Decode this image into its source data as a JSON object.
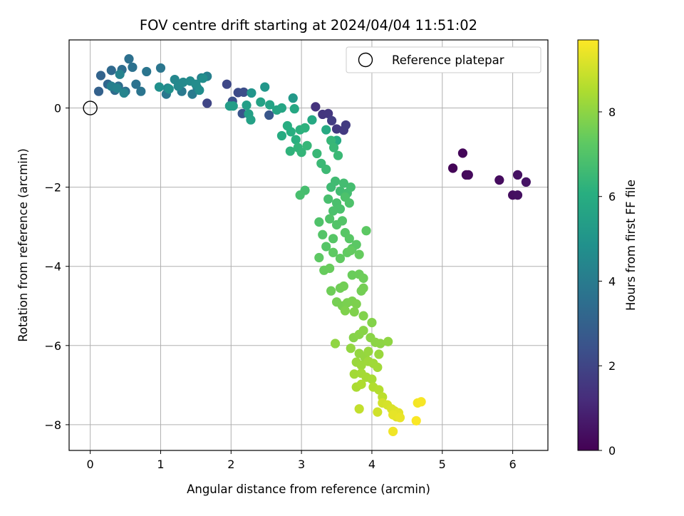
{
  "chart_data": {
    "type": "scatter",
    "title": "FOV centre drift starting at 2024/04/04 11:51:02",
    "xlabel": "Angular distance from reference (arcmin)",
    "ylabel": "Rotation from reference (arcmin)",
    "xlim": [
      -0.3,
      6.5
    ],
    "ylim": [
      -8.65,
      1.72
    ],
    "x_ticks": [
      0,
      1,
      2,
      3,
      4,
      5,
      6
    ],
    "y_ticks": [
      -8,
      -6,
      -4,
      -2,
      0
    ],
    "x_tick_labels": [
      "0",
      "1",
      "2",
      "3",
      "4",
      "5",
      "6"
    ],
    "y_tick_labels": [
      "−8",
      "−6",
      "−4",
      "−2",
      "0"
    ],
    "grid": true,
    "legend": {
      "placement": "top-right",
      "entries": [
        "Reference platepar"
      ]
    },
    "colorbar": {
      "label": "Hours from first FF file",
      "range": [
        0,
        9.7
      ],
      "ticks": [
        0,
        2,
        4,
        6,
        8
      ],
      "tick_labels": [
        "0",
        "2",
        "4",
        "6",
        "8"
      ],
      "colormap": "viridis"
    },
    "reference_point": {
      "x": 0,
      "y": 0
    },
    "points": [
      {
        "x": 5.15,
        "y": -1.52,
        "t": 0.1
      },
      {
        "x": 5.29,
        "y": -1.14,
        "t": 0.15
      },
      {
        "x": 5.34,
        "y": -1.69,
        "t": 0.2
      },
      {
        "x": 5.37,
        "y": -1.69,
        "t": 0.25
      },
      {
        "x": 5.81,
        "y": -1.82,
        "t": 0.3
      },
      {
        "x": 6.0,
        "y": -2.2,
        "t": 0.35
      },
      {
        "x": 6.07,
        "y": -2.2,
        "t": 0.4
      },
      {
        "x": 6.07,
        "y": -1.69,
        "t": 0.45
      },
      {
        "x": 6.19,
        "y": -1.87,
        "t": 0.5
      },
      {
        "x": 3.2,
        "y": 0.03,
        "t": 1.4
      },
      {
        "x": 3.3,
        "y": -0.16,
        "t": 1.5
      },
      {
        "x": 3.38,
        "y": -0.14,
        "t": 1.55
      },
      {
        "x": 3.5,
        "y": -0.53,
        "t": 1.6
      },
      {
        "x": 3.6,
        "y": -0.56,
        "t": 1.65
      },
      {
        "x": 3.63,
        "y": -0.43,
        "t": 1.7
      },
      {
        "x": 3.43,
        "y": -0.32,
        "t": 1.75
      },
      {
        "x": 1.66,
        "y": 0.12,
        "t": 2.0
      },
      {
        "x": 1.94,
        "y": 0.6,
        "t": 2.1
      },
      {
        "x": 2.1,
        "y": 0.39,
        "t": 2.2
      },
      {
        "x": 2.18,
        "y": 0.4,
        "t": 2.3
      },
      {
        "x": 2.02,
        "y": 0.17,
        "t": 2.4
      },
      {
        "x": 2.16,
        "y": -0.14,
        "t": 2.5
      },
      {
        "x": 2.54,
        "y": -0.18,
        "t": 2.6
      },
      {
        "x": 0.12,
        "y": 0.42,
        "t": 3.0
      },
      {
        "x": 0.15,
        "y": 0.82,
        "t": 3.1
      },
      {
        "x": 0.25,
        "y": 0.6,
        "t": 3.2
      },
      {
        "x": 0.3,
        "y": 0.95,
        "t": 3.3
      },
      {
        "x": 0.35,
        "y": 0.45,
        "t": 3.35
      },
      {
        "x": 0.4,
        "y": 0.55,
        "t": 3.4
      },
      {
        "x": 0.45,
        "y": 0.97,
        "t": 3.45
      },
      {
        "x": 0.5,
        "y": 0.42,
        "t": 3.5
      },
      {
        "x": 0.55,
        "y": 1.24,
        "t": 3.55
      },
      {
        "x": 0.6,
        "y": 1.03,
        "t": 3.6
      },
      {
        "x": 0.65,
        "y": 0.6,
        "t": 3.65
      },
      {
        "x": 0.72,
        "y": 0.42,
        "t": 3.7
      },
      {
        "x": 0.8,
        "y": 0.92,
        "t": 3.75
      },
      {
        "x": 1.0,
        "y": 1.01,
        "t": 3.8
      },
      {
        "x": 1.08,
        "y": 0.35,
        "t": 3.85
      },
      {
        "x": 1.3,
        "y": 0.42,
        "t": 3.9
      },
      {
        "x": 1.45,
        "y": 0.35,
        "t": 3.95
      },
      {
        "x": 1.52,
        "y": 0.51,
        "t": 4.0
      },
      {
        "x": 1.58,
        "y": 0.76,
        "t": 4.1
      },
      {
        "x": 1.66,
        "y": 0.8,
        "t": 4.2
      },
      {
        "x": 0.3,
        "y": 0.55,
        "t": 4.15
      },
      {
        "x": 0.38,
        "y": 0.5,
        "t": 4.25
      },
      {
        "x": 0.42,
        "y": 0.85,
        "t": 4.3
      },
      {
        "x": 0.48,
        "y": 0.38,
        "t": 4.35
      },
      {
        "x": 1.1,
        "y": 0.5,
        "t": 4.4
      },
      {
        "x": 1.2,
        "y": 0.72,
        "t": 4.45
      },
      {
        "x": 1.25,
        "y": 0.55,
        "t": 4.5
      },
      {
        "x": 1.32,
        "y": 0.65,
        "t": 4.55
      },
      {
        "x": 1.42,
        "y": 0.68,
        "t": 4.6
      },
      {
        "x": 1.5,
        "y": 0.6,
        "t": 4.65
      },
      {
        "x": 1.55,
        "y": 0.45,
        "t": 4.7
      },
      {
        "x": 1.6,
        "y": 0.75,
        "t": 4.75
      },
      {
        "x": 0.98,
        "y": 0.53,
        "t": 4.8
      },
      {
        "x": 1.12,
        "y": 0.48,
        "t": 4.85
      },
      {
        "x": 2.29,
        "y": 0.38,
        "t": 5.0
      },
      {
        "x": 2.48,
        "y": 0.53,
        "t": 5.1
      },
      {
        "x": 2.88,
        "y": 0.25,
        "t": 5.2
      },
      {
        "x": 1.98,
        "y": 0.05,
        "t": 5.3
      },
      {
        "x": 2.03,
        "y": 0.05,
        "t": 5.35
      },
      {
        "x": 2.22,
        "y": 0.07,
        "t": 5.4
      },
      {
        "x": 2.25,
        "y": -0.15,
        "t": 5.45
      },
      {
        "x": 2.28,
        "y": -0.3,
        "t": 5.5
      },
      {
        "x": 2.42,
        "y": 0.15,
        "t": 5.55
      },
      {
        "x": 2.55,
        "y": 0.08,
        "t": 5.6
      },
      {
        "x": 2.65,
        "y": -0.05,
        "t": 5.65
      },
      {
        "x": 2.72,
        "y": 0.0,
        "t": 5.7
      },
      {
        "x": 2.9,
        "y": -0.02,
        "t": 5.75
      },
      {
        "x": 3.15,
        "y": -0.3,
        "t": 5.8
      },
      {
        "x": 3.35,
        "y": -0.55,
        "t": 5.85
      },
      {
        "x": 3.5,
        "y": -0.82,
        "t": 5.9
      },
      {
        "x": 2.72,
        "y": -0.7,
        "t": 5.95
      },
      {
        "x": 2.8,
        "y": -0.45,
        "t": 6.0
      },
      {
        "x": 2.85,
        "y": -0.6,
        "t": 6.05
      },
      {
        "x": 2.92,
        "y": -0.8,
        "t": 6.1
      },
      {
        "x": 2.98,
        "y": -0.55,
        "t": 6.15
      },
      {
        "x": 3.05,
        "y": -0.5,
        "t": 6.2
      },
      {
        "x": 2.84,
        "y": -1.09,
        "t": 6.25
      },
      {
        "x": 2.95,
        "y": -1.0,
        "t": 6.3
      },
      {
        "x": 3.0,
        "y": -1.12,
        "t": 6.35
      },
      {
        "x": 3.08,
        "y": -0.95,
        "t": 6.4
      },
      {
        "x": 3.22,
        "y": -1.15,
        "t": 6.45
      },
      {
        "x": 3.28,
        "y": -1.4,
        "t": 6.5
      },
      {
        "x": 3.42,
        "y": -0.82,
        "t": 6.4
      },
      {
        "x": 3.46,
        "y": -1.0,
        "t": 6.45
      },
      {
        "x": 3.52,
        "y": -1.2,
        "t": 6.5
      },
      {
        "x": 3.35,
        "y": -1.55,
        "t": 6.55
      },
      {
        "x": 3.42,
        "y": -2.0,
        "t": 6.6
      },
      {
        "x": 3.48,
        "y": -1.85,
        "t": 6.62
      },
      {
        "x": 3.55,
        "y": -2.1,
        "t": 6.65
      },
      {
        "x": 3.6,
        "y": -1.9,
        "t": 6.68
      },
      {
        "x": 3.65,
        "y": -2.15,
        "t": 6.7
      },
      {
        "x": 3.7,
        "y": -2.0,
        "t": 6.72
      },
      {
        "x": 3.05,
        "y": -2.08,
        "t": 6.75
      },
      {
        "x": 2.98,
        "y": -2.2,
        "t": 6.78
      },
      {
        "x": 3.38,
        "y": -2.3,
        "t": 6.8
      },
      {
        "x": 3.5,
        "y": -2.4,
        "t": 6.82
      },
      {
        "x": 3.55,
        "y": -2.55,
        "t": 6.85
      },
      {
        "x": 3.45,
        "y": -2.6,
        "t": 6.88
      },
      {
        "x": 3.62,
        "y": -2.25,
        "t": 6.9
      },
      {
        "x": 3.68,
        "y": -2.4,
        "t": 6.92
      },
      {
        "x": 3.25,
        "y": -2.88,
        "t": 6.95
      },
      {
        "x": 3.4,
        "y": -2.8,
        "t": 6.98
      },
      {
        "x": 3.5,
        "y": -2.95,
        "t": 7.0
      },
      {
        "x": 3.58,
        "y": -2.85,
        "t": 7.02
      },
      {
        "x": 3.3,
        "y": -3.2,
        "t": 7.05
      },
      {
        "x": 3.35,
        "y": -3.5,
        "t": 7.08
      },
      {
        "x": 3.45,
        "y": -3.3,
        "t": 7.1
      },
      {
        "x": 3.62,
        "y": -3.15,
        "t": 7.12
      },
      {
        "x": 3.68,
        "y": -3.3,
        "t": 7.15
      },
      {
        "x": 3.72,
        "y": -3.55,
        "t": 7.18
      },
      {
        "x": 3.78,
        "y": -3.45,
        "t": 7.2
      },
      {
        "x": 3.92,
        "y": -3.1,
        "t": 7.22
      },
      {
        "x": 3.25,
        "y": -3.78,
        "t": 7.25
      },
      {
        "x": 3.45,
        "y": -3.65,
        "t": 7.28
      },
      {
        "x": 3.55,
        "y": -3.8,
        "t": 7.3
      },
      {
        "x": 3.65,
        "y": -3.65,
        "t": 7.32
      },
      {
        "x": 3.7,
        "y": -3.6,
        "t": 7.35
      },
      {
        "x": 3.82,
        "y": -3.7,
        "t": 7.38
      },
      {
        "x": 3.32,
        "y": -4.1,
        "t": 7.4
      },
      {
        "x": 3.4,
        "y": -4.05,
        "t": 7.42
      },
      {
        "x": 3.72,
        "y": -4.22,
        "t": 7.45
      },
      {
        "x": 3.82,
        "y": -4.2,
        "t": 7.48
      },
      {
        "x": 3.88,
        "y": -4.3,
        "t": 7.5
      },
      {
        "x": 3.42,
        "y": -4.62,
        "t": 7.52
      },
      {
        "x": 3.55,
        "y": -4.55,
        "t": 7.55
      },
      {
        "x": 3.6,
        "y": -4.5,
        "t": 7.58
      },
      {
        "x": 3.85,
        "y": -4.62,
        "t": 7.6
      },
      {
        "x": 3.88,
        "y": -4.55,
        "t": 7.62
      },
      {
        "x": 3.5,
        "y": -4.9,
        "t": 7.65
      },
      {
        "x": 3.58,
        "y": -5.0,
        "t": 7.68
      },
      {
        "x": 3.65,
        "y": -4.92,
        "t": 7.7
      },
      {
        "x": 3.72,
        "y": -4.88,
        "t": 7.72
      },
      {
        "x": 3.78,
        "y": -4.95,
        "t": 7.75
      },
      {
        "x": 3.62,
        "y": -5.12,
        "t": 7.78
      },
      {
        "x": 3.75,
        "y": -5.15,
        "t": 7.8
      },
      {
        "x": 3.88,
        "y": -5.25,
        "t": 7.82
      },
      {
        "x": 4.0,
        "y": -5.42,
        "t": 7.85
      },
      {
        "x": 3.74,
        "y": -5.8,
        "t": 7.88
      },
      {
        "x": 3.82,
        "y": -5.72,
        "t": 7.9
      },
      {
        "x": 3.88,
        "y": -5.62,
        "t": 7.92
      },
      {
        "x": 3.98,
        "y": -5.8,
        "t": 7.95
      },
      {
        "x": 4.05,
        "y": -5.92,
        "t": 7.98
      },
      {
        "x": 4.12,
        "y": -5.95,
        "t": 8.0
      },
      {
        "x": 4.23,
        "y": -5.9,
        "t": 8.02
      },
      {
        "x": 3.48,
        "y": -5.95,
        "t": 8.05
      },
      {
        "x": 3.7,
        "y": -6.07,
        "t": 8.08
      },
      {
        "x": 3.82,
        "y": -6.2,
        "t": 8.1
      },
      {
        "x": 3.9,
        "y": -6.3,
        "t": 8.12
      },
      {
        "x": 3.95,
        "y": -6.15,
        "t": 8.15
      },
      {
        "x": 4.1,
        "y": -6.22,
        "t": 8.18
      },
      {
        "x": 3.78,
        "y": -6.42,
        "t": 8.2
      },
      {
        "x": 3.85,
        "y": -6.5,
        "t": 8.22
      },
      {
        "x": 3.95,
        "y": -6.4,
        "t": 8.25
      },
      {
        "x": 4.02,
        "y": -6.45,
        "t": 8.28
      },
      {
        "x": 4.08,
        "y": -6.55,
        "t": 8.3
      },
      {
        "x": 3.75,
        "y": -6.72,
        "t": 8.32
      },
      {
        "x": 3.85,
        "y": -6.7,
        "t": 8.35
      },
      {
        "x": 3.92,
        "y": -6.8,
        "t": 8.38
      },
      {
        "x": 4.0,
        "y": -6.85,
        "t": 8.4
      },
      {
        "x": 3.78,
        "y": -7.05,
        "t": 8.45
      },
      {
        "x": 3.85,
        "y": -6.98,
        "t": 8.5
      },
      {
        "x": 4.02,
        "y": -7.05,
        "t": 8.55
      },
      {
        "x": 4.1,
        "y": -7.12,
        "t": 8.6
      },
      {
        "x": 4.15,
        "y": -7.3,
        "t": 8.7
      },
      {
        "x": 3.82,
        "y": -7.6,
        "t": 8.8
      },
      {
        "x": 4.08,
        "y": -7.68,
        "t": 9.0
      },
      {
        "x": 4.15,
        "y": -7.45,
        "t": 9.05
      },
      {
        "x": 4.22,
        "y": -7.5,
        "t": 9.1
      },
      {
        "x": 4.28,
        "y": -7.6,
        "t": 9.15
      },
      {
        "x": 4.32,
        "y": -7.65,
        "t": 9.2
      },
      {
        "x": 4.35,
        "y": -7.8,
        "t": 9.25
      },
      {
        "x": 4.38,
        "y": -7.7,
        "t": 9.3
      },
      {
        "x": 4.3,
        "y": -7.75,
        "t": 9.35
      },
      {
        "x": 4.4,
        "y": -7.82,
        "t": 9.4
      },
      {
        "x": 4.3,
        "y": -8.17,
        "t": 9.5
      },
      {
        "x": 4.65,
        "y": -7.45,
        "t": 9.55
      },
      {
        "x": 4.7,
        "y": -7.42,
        "t": 9.6
      },
      {
        "x": 4.63,
        "y": -7.9,
        "t": 9.65
      }
    ]
  }
}
